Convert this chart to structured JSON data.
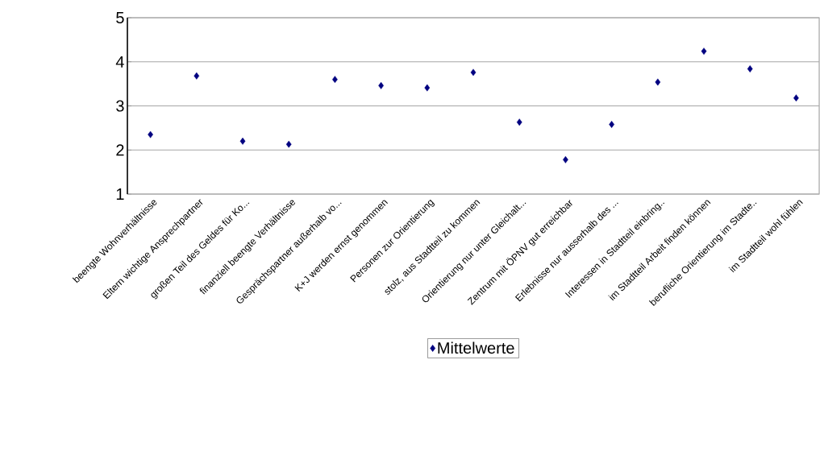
{
  "chart_data": {
    "type": "scatter",
    "categories": [
      "beengte Wohnverhältnisse",
      "Eltern wichtige Ansprechpartner",
      "großen Teil des Geldes für Ko...",
      "finanziell beengte Verhältnisse",
      "Gesprächspartner außerhalb vo...",
      "K+J werden ernst genommen",
      "Personen zur Orientierung",
      "stolz, aus Stadtteil zu kommen",
      "Orientierung nur unter Gleichalt...",
      "Zentrum mit ÖPNV gut erreichbar",
      "Erlebnisse nur ausserhalb des ...",
      "Interessen in Stadtteil einbring..",
      "im Stadtteil Arbeit finden können",
      "berufliche Orientierung im Stadte..",
      "im Stadtteil wohl fühlen"
    ],
    "series": [
      {
        "name": "Mittelwerte",
        "color": "#000080",
        "values": [
          2.35,
          3.68,
          2.2,
          2.13,
          3.6,
          3.46,
          3.41,
          3.76,
          2.63,
          1.78,
          2.58,
          3.54,
          4.24,
          3.84,
          3.18
        ]
      }
    ],
    "ylim": [
      1,
      5
    ],
    "yticks": [
      1,
      2,
      3,
      4,
      5
    ],
    "grid": "y",
    "legend": "bottom",
    "marker": "diamond"
  }
}
